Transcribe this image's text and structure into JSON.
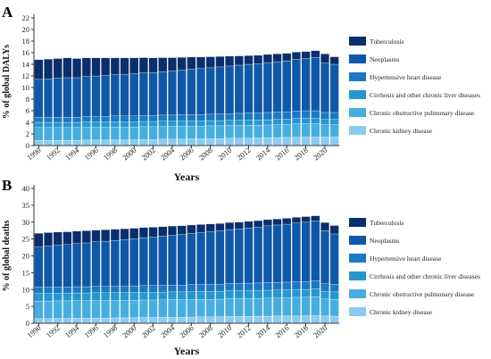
{
  "colors": {
    "tb": "#0a2f6c",
    "neo": "#0f58a8",
    "htn": "#1c78c2",
    "cirr": "#2796cf",
    "copd": "#46aedf",
    "ckd": "#8ccbee"
  },
  "chart_data": [
    {
      "type": "bar",
      "panel": "A",
      "ylabel": "% of global DALYs",
      "xlabel": "Years",
      "ylim": [
        0,
        22
      ],
      "yticks": [
        0,
        2,
        4,
        6,
        8,
        10,
        12,
        14,
        16,
        18,
        20,
        22
      ],
      "categories": [
        "1990",
        "1991",
        "1992",
        "1993",
        "1994",
        "1995",
        "1996",
        "1997",
        "1998",
        "1999",
        "2000",
        "2001",
        "2002",
        "2003",
        "2004",
        "2005",
        "2006",
        "2007",
        "2008",
        "2009",
        "2010",
        "2011",
        "2012",
        "2013",
        "2014",
        "2015",
        "2016",
        "2017",
        "2018",
        "2019",
        "2020",
        "2021"
      ],
      "xtick_labels": [
        "1990",
        "1992",
        "1994",
        "1996",
        "1998",
        "2000",
        "2002",
        "2004",
        "2006",
        "2008",
        "2010",
        "2012",
        "2014",
        "2016",
        "2018",
        "2020"
      ],
      "legend_position": "right",
      "series": [
        {
          "name": "Chronic kidney disease",
          "color_key": "ckd",
          "values": [
            0.9,
            0.9,
            0.9,
            0.9,
            0.9,
            0.95,
            0.95,
            0.95,
            1.0,
            1.0,
            1.0,
            1.05,
            1.05,
            1.1,
            1.1,
            1.1,
            1.15,
            1.15,
            1.2,
            1.2,
            1.25,
            1.25,
            1.3,
            1.3,
            1.35,
            1.35,
            1.4,
            1.45,
            1.5,
            1.5,
            1.5,
            1.5
          ]
        },
        {
          "name": "Chronic obstructive pulmonary disease",
          "color_key": "copd",
          "values": [
            2.2,
            2.2,
            2.2,
            2.2,
            2.2,
            2.2,
            2.2,
            2.2,
            2.2,
            2.2,
            2.2,
            2.2,
            2.2,
            2.2,
            2.2,
            2.2,
            2.2,
            2.2,
            2.2,
            2.2,
            2.2,
            2.2,
            2.2,
            2.2,
            2.2,
            2.25,
            2.25,
            2.3,
            2.3,
            2.3,
            2.1,
            2.1
          ]
        },
        {
          "name": "Cirrhosis and other chronic liver diseases",
          "color_key": "cirr",
          "values": [
            0.9,
            0.9,
            0.9,
            0.9,
            0.9,
            0.9,
            0.9,
            0.9,
            0.9,
            0.9,
            0.9,
            0.9,
            0.9,
            0.9,
            0.9,
            0.9,
            0.9,
            0.9,
            0.9,
            0.9,
            0.9,
            0.9,
            0.9,
            0.9,
            0.9,
            0.9,
            0.9,
            0.9,
            0.9,
            0.9,
            0.9,
            0.9
          ]
        },
        {
          "name": "Hypertensive heart disease",
          "color_key": "htn",
          "values": [
            0.9,
            0.9,
            0.9,
            0.9,
            0.9,
            0.95,
            0.95,
            0.95,
            1.0,
            1.0,
            1.0,
            1.0,
            1.05,
            1.05,
            1.05,
            1.1,
            1.1,
            1.1,
            1.1,
            1.15,
            1.15,
            1.2,
            1.2,
            1.2,
            1.25,
            1.25,
            1.25,
            1.3,
            1.3,
            1.3,
            1.2,
            1.2
          ]
        },
        {
          "name": "Neoplasms",
          "color_key": "neo",
          "values": [
            6.5,
            6.6,
            6.7,
            6.8,
            6.8,
            6.9,
            7.0,
            7.1,
            7.1,
            7.2,
            7.3,
            7.4,
            7.4,
            7.5,
            7.6,
            7.7,
            7.8,
            7.9,
            8.0,
            8.1,
            8.2,
            8.3,
            8.4,
            8.5,
            8.6,
            8.7,
            8.8,
            8.9,
            9.0,
            9.2,
            8.5,
            8.3
          ]
        },
        {
          "name": "Tuberculosis",
          "color_key": "tb",
          "values": [
            3.4,
            3.4,
            3.4,
            3.4,
            3.3,
            3.2,
            3.1,
            3.0,
            2.9,
            2.8,
            2.7,
            2.6,
            2.5,
            2.4,
            2.3,
            2.2,
            2.1,
            2.0,
            1.9,
            1.8,
            1.7,
            1.6,
            1.5,
            1.45,
            1.4,
            1.35,
            1.3,
            1.25,
            1.2,
            1.15,
            1.6,
            1.3
          ]
        }
      ]
    },
    {
      "type": "bar",
      "panel": "B",
      "ylabel": "% of global deaths",
      "xlabel": "Years",
      "ylim": [
        0,
        40
      ],
      "yticks": [
        0,
        5,
        10,
        15,
        20,
        25,
        30,
        35,
        40
      ],
      "categories": [
        "1990",
        "1991",
        "1992",
        "1993",
        "1994",
        "1995",
        "1996",
        "1997",
        "1998",
        "1999",
        "2000",
        "2001",
        "2002",
        "2003",
        "2004",
        "2005",
        "2006",
        "2007",
        "2008",
        "2009",
        "2010",
        "2011",
        "2012",
        "2013",
        "2014",
        "2015",
        "2016",
        "2017",
        "2018",
        "2019",
        "2020",
        "2021"
      ],
      "xtick_labels": [
        "1990",
        "1992",
        "1994",
        "1996",
        "1998",
        "2000",
        "2002",
        "2004",
        "2006",
        "2008",
        "2010",
        "2012",
        "2014",
        "2016",
        "2018",
        "2020"
      ],
      "legend_position": "right",
      "series": [
        {
          "name": "Chronic kidney disease",
          "color_key": "ckd",
          "values": [
            1.4,
            1.4,
            1.45,
            1.45,
            1.5,
            1.5,
            1.55,
            1.55,
            1.6,
            1.6,
            1.65,
            1.7,
            1.7,
            1.75,
            1.8,
            1.8,
            1.85,
            1.9,
            1.9,
            1.95,
            2.0,
            2.0,
            2.05,
            2.1,
            2.1,
            2.15,
            2.2,
            2.2,
            2.25,
            2.3,
            2.2,
            2.1
          ]
        },
        {
          "name": "Chronic obstructive pulmonary disease",
          "color_key": "copd",
          "values": [
            5.2,
            5.2,
            5.2,
            5.2,
            5.2,
            5.2,
            5.2,
            5.2,
            5.2,
            5.2,
            5.2,
            5.2,
            5.2,
            5.2,
            5.2,
            5.2,
            5.2,
            5.2,
            5.2,
            5.2,
            5.3,
            5.3,
            5.3,
            5.3,
            5.4,
            5.4,
            5.4,
            5.5,
            5.5,
            5.6,
            5.0,
            5.0
          ]
        },
        {
          "name": "Cirrhosis and other chronic liver diseases",
          "color_key": "cirr",
          "values": [
            2.3,
            2.3,
            2.3,
            2.3,
            2.3,
            2.3,
            2.3,
            2.3,
            2.3,
            2.3,
            2.3,
            2.3,
            2.3,
            2.3,
            2.3,
            2.3,
            2.3,
            2.3,
            2.3,
            2.3,
            2.3,
            2.3,
            2.3,
            2.3,
            2.3,
            2.3,
            2.3,
            2.3,
            2.3,
            2.3,
            2.2,
            2.2
          ]
        },
        {
          "name": "Hypertensive heart disease",
          "color_key": "htn",
          "values": [
            1.8,
            1.8,
            1.8,
            1.8,
            1.85,
            1.85,
            1.9,
            1.9,
            1.9,
            1.95,
            1.95,
            2.0,
            2.0,
            2.0,
            2.05,
            2.05,
            2.1,
            2.1,
            2.15,
            2.15,
            2.2,
            2.2,
            2.25,
            2.25,
            2.3,
            2.3,
            2.3,
            2.35,
            2.35,
            2.4,
            2.3,
            2.3
          ]
        },
        {
          "name": "Neoplasms",
          "color_key": "neo",
          "values": [
            12.0,
            12.2,
            12.4,
            12.6,
            12.8,
            13.0,
            13.2,
            13.4,
            13.6,
            13.8,
            14.0,
            14.2,
            14.4,
            14.6,
            14.8,
            15.0,
            15.2,
            15.4,
            15.6,
            15.8,
            16.0,
            16.2,
            16.4,
            16.6,
            16.8,
            17.0,
            17.2,
            17.4,
            17.6,
            17.8,
            15.8,
            14.9
          ]
        },
        {
          "name": "Tuberculosis",
          "color_key": "tb",
          "values": [
            4.0,
            4.0,
            3.9,
            3.8,
            3.7,
            3.6,
            3.5,
            3.4,
            3.3,
            3.2,
            3.1,
            3.0,
            2.9,
            2.8,
            2.7,
            2.6,
            2.5,
            2.4,
            2.3,
            2.2,
            2.1,
            2.0,
            1.95,
            1.9,
            1.85,
            1.8,
            1.75,
            1.7,
            1.65,
            1.5,
            2.4,
            2.5
          ]
        }
      ]
    }
  ]
}
